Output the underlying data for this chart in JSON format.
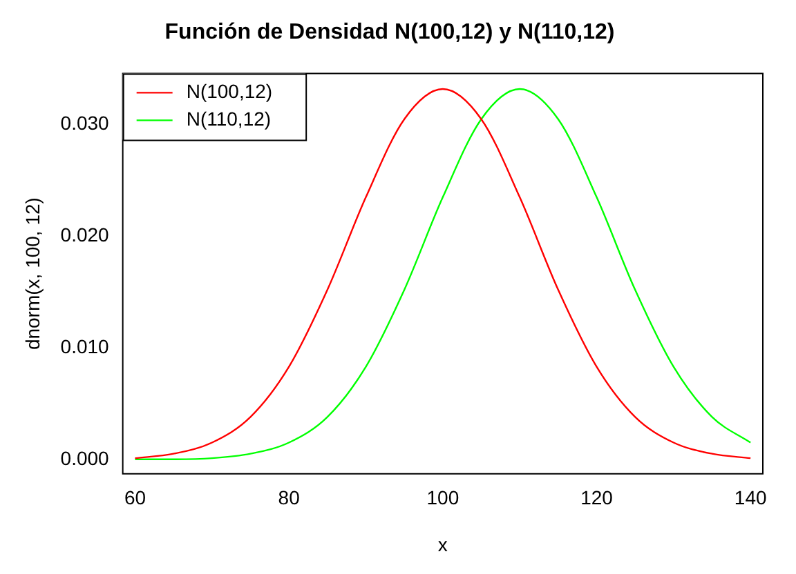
{
  "chart_data": {
    "type": "line",
    "title": "Función de Densidad N(100,12) y N(110,12)",
    "xlabel": "x",
    "ylabel": "dnorm(x, 100, 12)",
    "x": [
      60,
      65,
      70,
      75,
      80,
      85,
      90,
      95,
      100,
      105,
      110,
      115,
      120,
      125,
      130,
      135,
      140
    ],
    "series": [
      {
        "name": "N(100,12)",
        "color": "#ff0000",
        "values": [
          0.0001,
          0.0005,
          0.0015,
          0.0038,
          0.0083,
          0.0152,
          0.0235,
          0.0305,
          0.0332,
          0.0305,
          0.0235,
          0.0152,
          0.0083,
          0.0038,
          0.0015,
          0.0005,
          0.0001
        ]
      },
      {
        "name": "N(110,12)",
        "color": "#00ff00",
        "values": [
          0.0,
          0.0,
          0.0001,
          0.0005,
          0.0015,
          0.0038,
          0.0083,
          0.0152,
          0.0235,
          0.0305,
          0.0332,
          0.0305,
          0.0235,
          0.0152,
          0.0083,
          0.0038,
          0.0015
        ]
      }
    ],
    "xlim": [
      58.4,
      141.6
    ],
    "xticks": [
      60,
      80,
      100,
      120,
      140
    ],
    "ylim": [
      -0.0013,
      0.0346
    ],
    "yticks": [
      {
        "value": 0,
        "label": "0.000"
      },
      {
        "value": 0.01,
        "label": "0.010"
      },
      {
        "value": 0.02,
        "label": "0.020"
      },
      {
        "value": 0.03,
        "label": "0.030"
      }
    ],
    "legend": "top left",
    "grid": false,
    "marker": "none",
    "line_style": "solid"
  }
}
